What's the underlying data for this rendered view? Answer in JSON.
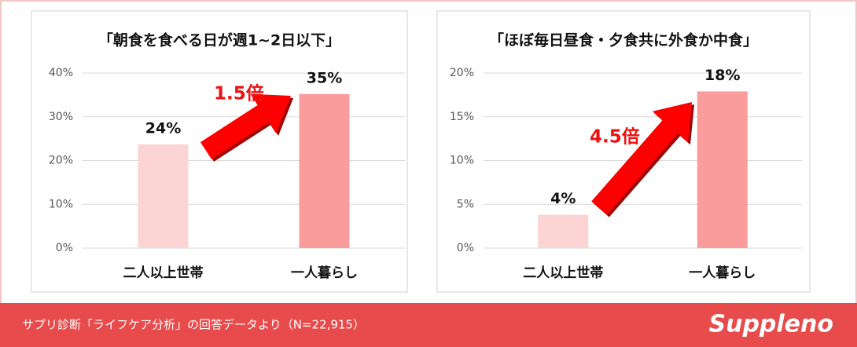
{
  "chart_data": [
    {
      "type": "bar",
      "title": "「朝食を食べる日が週1~2日以下」",
      "categories": [
        "二人以上世帯",
        "一人暮らし"
      ],
      "series": [
        {
          "values": [
            23.7,
            35.2
          ],
          "value_labels": [
            "24%",
            "35%"
          ],
          "colors": [
            "#fdd4d4",
            "#fb9c9c"
          ]
        }
      ],
      "ylim": [
        0,
        40
      ],
      "yticks": [
        {
          "value": 0,
          "label": "0%"
        },
        {
          "value": 10,
          "label": "10%"
        },
        {
          "value": 20,
          "label": "20%"
        },
        {
          "value": 30,
          "label": "30%"
        },
        {
          "value": 40,
          "label": "40%"
        }
      ],
      "grid": true,
      "annotation": "1.5倍"
    },
    {
      "type": "bar",
      "title": "「ほぼ毎日昼食・夕食共に外食か中食」",
      "categories": [
        "二人以上世帯",
        "一人暮らし"
      ],
      "series": [
        {
          "values": [
            3.8,
            17.9
          ],
          "value_labels": [
            "4%",
            "18%"
          ],
          "colors": [
            "#fdd4d4",
            "#fb9c9c"
          ]
        }
      ],
      "ylim": [
        0,
        20
      ],
      "yticks": [
        {
          "value": 0,
          "label": "0%"
        },
        {
          "value": 5,
          "label": "5%"
        },
        {
          "value": 10,
          "label": "10%"
        },
        {
          "value": 15,
          "label": "15%"
        },
        {
          "value": 20,
          "label": "20%"
        }
      ],
      "grid": true,
      "annotation": "4.5倍"
    }
  ],
  "footer": {
    "source": "サプリ診断「ライフケア分析」の回答データより（N=22,915）",
    "logo": "Suppleno"
  }
}
